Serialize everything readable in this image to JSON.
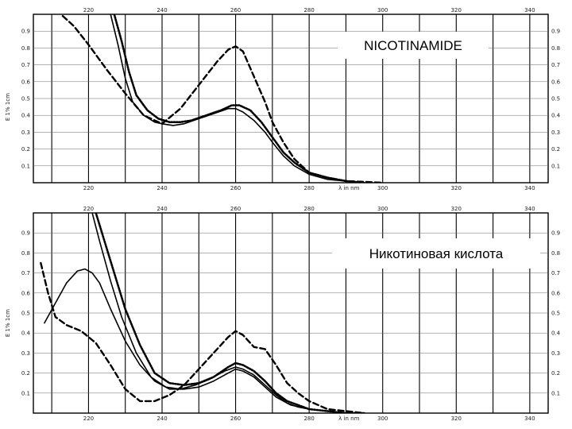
{
  "chart_data": [
    {
      "type": "line",
      "title": "NICOTINAMIDE",
      "ylabel": "E 1% 1cm",
      "xlabel": "λ in nm",
      "xlim": [
        205,
        345
      ],
      "ylim": [
        0,
        1.0
      ],
      "grid": true,
      "xticks_top": [
        "220",
        "240",
        "260",
        "280",
        "300",
        "320",
        "340"
      ],
      "xticks_bottom": [
        "220",
        "240",
        "260",
        "280",
        "300",
        "320",
        "340"
      ],
      "yticks_left": [
        "0.9",
        "0.8",
        "0.7",
        "0.6",
        "0.5",
        "0.4",
        "0.3",
        "0.2",
        "0.1"
      ],
      "yticks_right": [
        "0.9",
        "0.8",
        "0.7",
        "0.6",
        "0.5",
        "0.4",
        "0.3",
        "0.2",
        "0.1"
      ],
      "series": [
        {
          "style": "dashed",
          "x": [
            213,
            216,
            220,
            225,
            230,
            235,
            240,
            245,
            250,
            255,
            258,
            260,
            262,
            265,
            268,
            270,
            273,
            276,
            280,
            285,
            290,
            295,
            300
          ],
          "y": [
            0.99,
            0.93,
            0.82,
            0.67,
            0.53,
            0.4,
            0.35,
            0.44,
            0.58,
            0.72,
            0.79,
            0.81,
            0.78,
            0.63,
            0.48,
            0.36,
            0.24,
            0.14,
            0.06,
            0.03,
            0.01,
            0.005,
            0.0
          ]
        },
        {
          "style": "solid",
          "x": [
            226,
            228,
            230,
            232,
            235,
            238,
            240,
            243,
            246,
            250,
            254,
            258,
            260,
            262,
            265,
            268,
            270,
            273,
            276,
            280,
            285,
            290,
            295
          ],
          "y": [
            1.0,
            0.82,
            0.62,
            0.48,
            0.4,
            0.36,
            0.35,
            0.34,
            0.35,
            0.38,
            0.41,
            0.44,
            0.44,
            0.42,
            0.37,
            0.3,
            0.24,
            0.16,
            0.1,
            0.05,
            0.02,
            0.01,
            0.0
          ]
        },
        {
          "style": "dotted",
          "x": [
            227,
            229,
            231,
            233,
            236,
            239,
            242,
            245,
            248,
            252,
            256,
            259,
            261,
            264,
            267,
            270,
            273,
            276,
            280,
            285,
            290,
            295
          ],
          "y": [
            1.0,
            0.84,
            0.66,
            0.52,
            0.43,
            0.38,
            0.36,
            0.36,
            0.37,
            0.4,
            0.43,
            0.46,
            0.46,
            0.43,
            0.36,
            0.27,
            0.18,
            0.12,
            0.06,
            0.03,
            0.01,
            0.0
          ]
        }
      ]
    },
    {
      "type": "line",
      "title": "Никотиновая кислота",
      "ylabel": "E 1% 1cm",
      "xlabel": "λ in nm",
      "xlim": [
        205,
        345
      ],
      "ylim": [
        0,
        1.0
      ],
      "grid": true,
      "xticks_top": [
        "220",
        "240",
        "260",
        "280",
        "300",
        "320",
        "340"
      ],
      "xticks_bottom": [
        "220",
        "240",
        "260",
        "280",
        "300",
        "320",
        "340"
      ],
      "yticks_left": [
        "0.9",
        "0.8",
        "0.7",
        "0.6",
        "0.5",
        "0.4",
        "0.3",
        "0.2",
        "0.1"
      ],
      "yticks_right": [
        "0.9",
        "0.8",
        "0.7",
        "0.6",
        "0.5",
        "0.4",
        "0.3",
        "0.2",
        "0.1"
      ],
      "series": [
        {
          "style": "solid",
          "x": [
            208,
            211,
            214,
            217,
            219,
            221,
            223,
            226,
            230,
            234,
            238,
            242,
            246,
            250,
            254,
            258,
            260,
            262,
            265,
            268,
            271,
            275,
            280,
            285,
            290
          ],
          "y": [
            0.45,
            0.55,
            0.65,
            0.71,
            0.72,
            0.7,
            0.65,
            0.52,
            0.36,
            0.24,
            0.16,
            0.12,
            0.12,
            0.13,
            0.16,
            0.2,
            0.22,
            0.21,
            0.18,
            0.13,
            0.08,
            0.04,
            0.02,
            0.01,
            0.0
          ]
        },
        {
          "style": "dashed",
          "x": [
            207,
            209,
            211,
            214,
            218,
            222,
            226,
            230,
            234,
            238,
            242,
            246,
            250,
            254,
            258,
            260,
            262,
            265,
            268,
            271,
            274,
            277,
            280,
            285,
            290,
            295
          ],
          "y": [
            0.75,
            0.6,
            0.48,
            0.44,
            0.41,
            0.35,
            0.24,
            0.12,
            0.06,
            0.06,
            0.09,
            0.14,
            0.22,
            0.3,
            0.38,
            0.41,
            0.39,
            0.33,
            0.32,
            0.24,
            0.15,
            0.1,
            0.06,
            0.02,
            0.01,
            0.0
          ]
        },
        {
          "style": "dotted",
          "x": [
            222,
            224,
            227,
            230,
            234,
            238,
            242,
            246,
            250,
            254,
            258,
            260,
            262,
            265,
            268,
            271,
            274,
            277,
            280,
            285,
            290,
            295
          ],
          "y": [
            1.0,
            0.88,
            0.7,
            0.52,
            0.34,
            0.2,
            0.15,
            0.14,
            0.15,
            0.18,
            0.23,
            0.25,
            0.24,
            0.21,
            0.16,
            0.1,
            0.06,
            0.04,
            0.02,
            0.01,
            0.0,
            0.0
          ]
        },
        {
          "style": "solid",
          "x": [
            221,
            223,
            226,
            229,
            233,
            237,
            241,
            245,
            249,
            253,
            257,
            260,
            262,
            265,
            268,
            271,
            274,
            277,
            280,
            285,
            290
          ],
          "y": [
            1.0,
            0.86,
            0.66,
            0.48,
            0.3,
            0.18,
            0.13,
            0.12,
            0.14,
            0.17,
            0.21,
            0.23,
            0.22,
            0.19,
            0.14,
            0.09,
            0.05,
            0.03,
            0.02,
            0.01,
            0.0
          ]
        }
      ]
    }
  ]
}
